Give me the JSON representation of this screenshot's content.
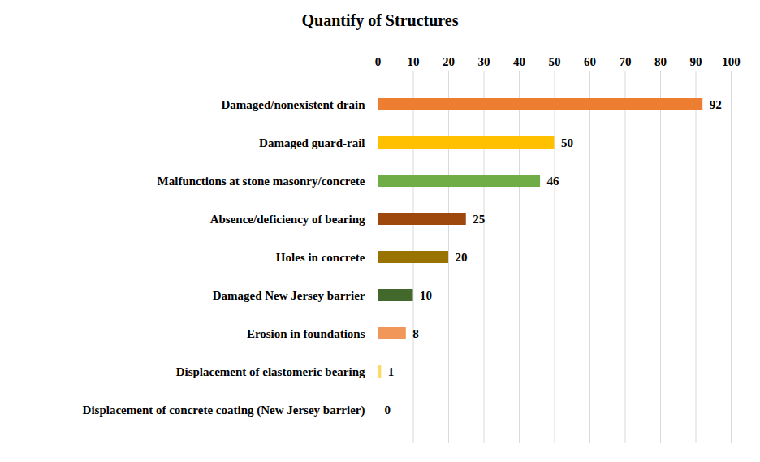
{
  "chart_data": {
    "type": "bar",
    "title": "Quantify of Structures",
    "orientation": "horizontal",
    "categories": [
      "Damaged/nonexistent drain",
      "Damaged guard-rail",
      "Malfunctions at stone masonry/concrete",
      "Absence/deficiency of bearing",
      "Holes in concrete",
      "Damaged New Jersey barrier",
      "Erosion in foundations",
      "Displacement of elastomeric bearing",
      "Displacement of concrete coating (New Jersey barrier)"
    ],
    "values": [
      92,
      50,
      46,
      25,
      20,
      10,
      8,
      1,
      0
    ],
    "colors": [
      "#ED7D31",
      "#FFC000",
      "#70AD47",
      "#9E480E",
      "#997300",
      "#43682B",
      "#F1975A",
      "#FFD966",
      "#A9D18E"
    ],
    "xlim": [
      0,
      100
    ],
    "xticks": [
      0,
      10,
      20,
      30,
      40,
      50,
      60,
      70,
      80,
      90,
      100
    ],
    "grid": true,
    "data_labels": true
  }
}
